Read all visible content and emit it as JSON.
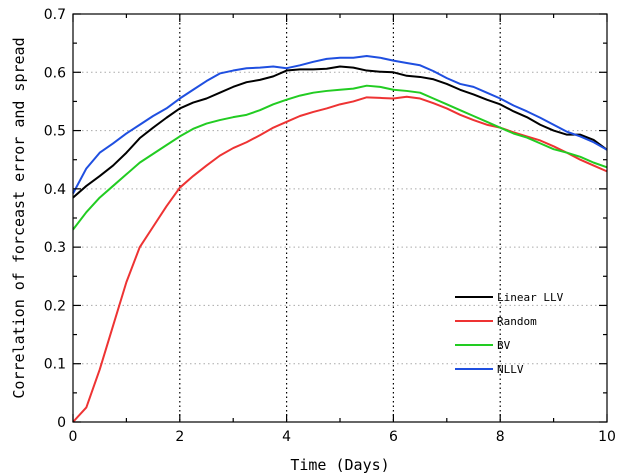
{
  "chart_data": {
    "type": "line",
    "xlabel": "Time (Days)",
    "ylabel": "Correlation of forceast error and spread",
    "xlim": [
      0,
      10
    ],
    "ylim": [
      0,
      0.7
    ],
    "x_ticks": [
      0,
      2,
      4,
      6,
      8,
      10
    ],
    "y_ticks": [
      0,
      0.1,
      0.2,
      0.3,
      0.4,
      0.5,
      0.6,
      0.7
    ],
    "x_tick_labels": [
      "0",
      "2",
      "4",
      "6",
      "8",
      "10"
    ],
    "y_tick_labels": [
      "0",
      "0.1",
      "0.2",
      "0.3",
      "0.4",
      "0.5",
      "0.6",
      "0.7"
    ],
    "grid": "dotted; vertical at x=2,4,6,8; horizontal at y=0.1 to 0.6",
    "legend_position": "bottom-right",
    "x": [
      0,
      0.25,
      0.5,
      0.75,
      1,
      1.25,
      1.5,
      1.75,
      2,
      2.25,
      2.5,
      2.75,
      3,
      3.25,
      3.5,
      3.75,
      4,
      4.25,
      4.5,
      4.75,
      5,
      5.25,
      5.5,
      5.75,
      6,
      6.25,
      6.5,
      6.75,
      7,
      7.25,
      7.5,
      7.75,
      8,
      8.25,
      8.5,
      8.75,
      9,
      9.25,
      9.5,
      9.75,
      10
    ],
    "series": [
      {
        "name": "Linear LLV",
        "color": "#000000",
        "values": [
          0.385,
          0.405,
          0.422,
          0.44,
          0.462,
          0.487,
          0.505,
          0.522,
          0.538,
          0.548,
          0.555,
          0.565,
          0.575,
          0.583,
          0.587,
          0.593,
          0.603,
          0.605,
          0.605,
          0.606,
          0.61,
          0.608,
          0.603,
          0.601,
          0.6,
          0.594,
          0.592,
          0.588,
          0.58,
          0.57,
          0.562,
          0.553,
          0.545,
          0.533,
          0.523,
          0.51,
          0.5,
          0.493,
          0.493,
          0.484,
          0.467
        ]
      },
      {
        "name": "Random",
        "color": "#ee3333",
        "values": [
          0.0,
          0.025,
          0.09,
          0.165,
          0.24,
          0.3,
          0.335,
          0.37,
          0.402,
          0.422,
          0.44,
          0.457,
          0.47,
          0.48,
          0.492,
          0.505,
          0.515,
          0.525,
          0.532,
          0.538,
          0.545,
          0.55,
          0.557,
          0.556,
          0.555,
          0.558,
          0.555,
          0.547,
          0.538,
          0.527,
          0.518,
          0.51,
          0.505,
          0.497,
          0.49,
          0.483,
          0.473,
          0.462,
          0.45,
          0.44,
          0.43
        ]
      },
      {
        "name": "BV",
        "color": "#22cc22",
        "values": [
          0.33,
          0.36,
          0.385,
          0.405,
          0.425,
          0.445,
          0.46,
          0.475,
          0.49,
          0.503,
          0.512,
          0.518,
          0.523,
          0.527,
          0.535,
          0.545,
          0.553,
          0.56,
          0.565,
          0.568,
          0.57,
          0.572,
          0.577,
          0.575,
          0.57,
          0.568,
          0.565,
          0.555,
          0.545,
          0.535,
          0.525,
          0.515,
          0.505,
          0.495,
          0.488,
          0.478,
          0.468,
          0.462,
          0.455,
          0.445,
          0.437
        ]
      },
      {
        "name": "NLLV",
        "color": "#1f4fe0",
        "values": [
          0.392,
          0.435,
          0.462,
          0.478,
          0.495,
          0.51,
          0.525,
          0.538,
          0.555,
          0.57,
          0.585,
          0.598,
          0.603,
          0.607,
          0.608,
          0.61,
          0.607,
          0.612,
          0.618,
          0.623,
          0.625,
          0.625,
          0.628,
          0.625,
          0.62,
          0.616,
          0.612,
          0.602,
          0.59,
          0.58,
          0.575,
          0.565,
          0.555,
          0.543,
          0.533,
          0.522,
          0.51,
          0.498,
          0.49,
          0.48,
          0.467
        ]
      }
    ]
  }
}
